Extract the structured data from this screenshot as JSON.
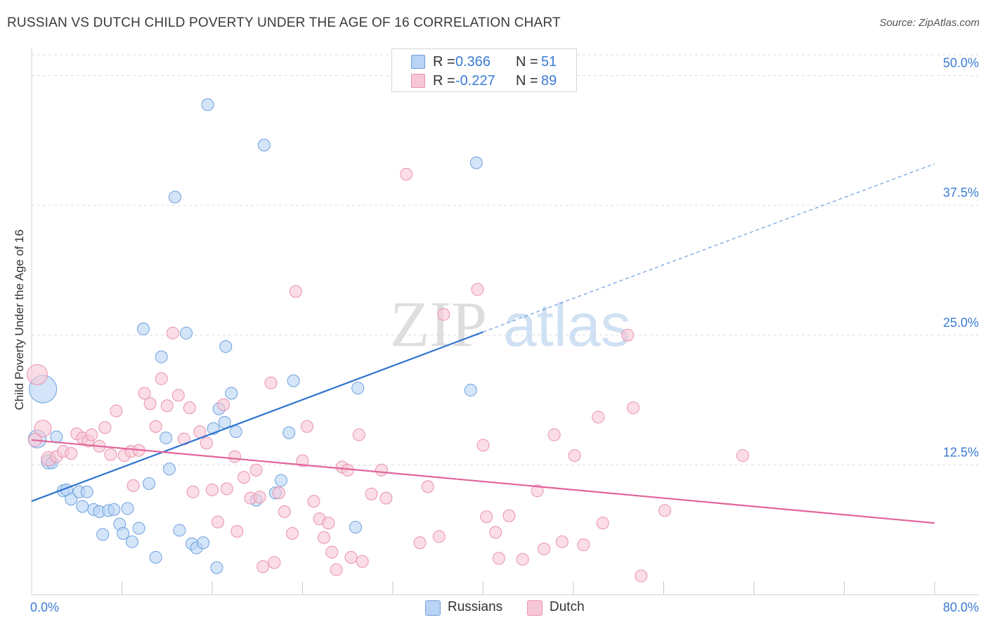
{
  "title": "RUSSIAN VS DUTCH CHILD POVERTY UNDER THE AGE OF 16 CORRELATION CHART",
  "source": "Source: ZipAtlas.com",
  "watermark": {
    "zip": "ZIP",
    "atlas": "atlas"
  },
  "stats": {
    "russians": {
      "r_label": "R =",
      "r_value": "0.366",
      "n_label": "N =",
      "n_value": "51"
    },
    "dutch": {
      "r_label": "R =",
      "r_value": "-0.227",
      "n_label": "N =",
      "n_value": "89"
    }
  },
  "legend": {
    "russians": "Russians",
    "dutch": "Dutch"
  },
  "colors": {
    "russians_fill": "#b8d3f5",
    "russians_stroke": "#6fa0dc",
    "russians_line": "#2f74d0",
    "dutch_fill": "#f8c7d6",
    "dutch_stroke": "#e891b0",
    "dutch_line": "#e2649a",
    "value_text": "#3a7bd5",
    "grid": "#dedede"
  },
  "chart_data": {
    "type": "scatter",
    "title": "RUSSIAN VS DUTCH CHILD POVERTY UNDER THE AGE OF 16 CORRELATION CHART",
    "xlabel": "",
    "ylabel": "Child Poverty Under the Age of 16",
    "xlim": [
      0,
      80
    ],
    "ylim": [
      0,
      52
    ],
    "x_tick_labels": [
      "0.0%",
      "80.0%"
    ],
    "y_ticks": [
      12.5,
      25.0,
      37.5,
      50.0
    ],
    "y_tick_labels": [
      "12.5%",
      "25.0%",
      "37.5%",
      "50.0%"
    ],
    "grid": true,
    "legend_position": "bottom-center",
    "series": [
      {
        "name": "Russians",
        "points": [
          [
            1.0,
            19.8,
            2.3
          ],
          [
            0.5,
            15.0,
            1.5
          ],
          [
            1.5,
            12.8,
            1.2
          ],
          [
            1.8,
            12.7,
            1
          ],
          [
            2.2,
            15.2,
            1
          ],
          [
            2.8,
            10.0,
            1
          ],
          [
            3.1,
            10.1,
            1
          ],
          [
            3.5,
            9.2,
            1
          ],
          [
            4.2,
            9.9,
            1
          ],
          [
            4.9,
            9.9,
            1
          ],
          [
            4.5,
            8.5,
            1
          ],
          [
            5.5,
            8.2,
            1
          ],
          [
            6.0,
            8.0,
            1
          ],
          [
            6.8,
            8.1,
            1
          ],
          [
            7.3,
            8.2,
            1
          ],
          [
            8.5,
            8.3,
            1
          ],
          [
            7.8,
            6.8,
            1
          ],
          [
            6.3,
            5.8,
            1
          ],
          [
            8.1,
            5.9,
            1
          ],
          [
            8.9,
            5.1,
            1
          ],
          [
            9.5,
            6.4,
            1
          ],
          [
            10.4,
            10.7,
            1
          ],
          [
            11.0,
            3.6,
            1
          ],
          [
            11.9,
            15.1,
            1
          ],
          [
            12.2,
            12.1,
            1
          ],
          [
            13.1,
            6.2,
            1
          ],
          [
            14.2,
            4.9,
            1
          ],
          [
            14.6,
            4.5,
            1
          ],
          [
            15.2,
            5.0,
            1
          ],
          [
            16.1,
            16.0,
            1
          ],
          [
            16.4,
            2.6,
            1
          ],
          [
            17.1,
            16.6,
            1
          ],
          [
            18.1,
            15.7,
            1
          ],
          [
            19.9,
            9.1,
            1
          ],
          [
            21.6,
            9.8,
            1
          ],
          [
            22.1,
            11.0,
            1
          ],
          [
            22.8,
            15.6,
            1
          ],
          [
            23.2,
            20.6,
            1
          ],
          [
            28.7,
            6.5,
            1
          ],
          [
            28.9,
            19.9,
            1
          ],
          [
            9.9,
            25.6,
            1
          ],
          [
            11.5,
            22.9,
            1
          ],
          [
            13.7,
            25.2,
            1
          ],
          [
            17.2,
            23.9,
            1
          ],
          [
            16.6,
            17.9,
            1
          ],
          [
            17.7,
            19.4,
            1
          ],
          [
            12.7,
            38.3,
            1
          ],
          [
            15.6,
            47.2,
            1
          ],
          [
            20.6,
            43.3,
            1
          ],
          [
            38.9,
            19.7,
            1
          ],
          [
            39.4,
            41.6,
            1
          ]
        ],
        "trend": {
          "x0": 0,
          "y0": 9.0,
          "x1": 40,
          "y1": 25.3,
          "dashed_to_x": 80,
          "dashed_to_y": 41.5
        }
      },
      {
        "name": "Dutch",
        "points": [
          [
            0.5,
            21.2,
            1.7
          ],
          [
            1.0,
            16.0,
            1.4
          ],
          [
            1.5,
            13.1,
            1.2
          ],
          [
            2.2,
            13.3,
            1
          ],
          [
            2.8,
            13.8,
            1
          ],
          [
            3.5,
            13.6,
            1
          ],
          [
            4.0,
            15.5,
            1
          ],
          [
            4.5,
            15.1,
            1
          ],
          [
            5.0,
            14.8,
            1
          ],
          [
            5.3,
            15.4,
            1
          ],
          [
            6.0,
            14.3,
            1
          ],
          [
            6.5,
            16.1,
            1
          ],
          [
            7.0,
            13.5,
            1
          ],
          [
            7.5,
            17.7,
            1
          ],
          [
            8.2,
            13.4,
            1
          ],
          [
            8.8,
            13.8,
            1
          ],
          [
            9.0,
            10.5,
            1
          ],
          [
            9.5,
            13.9,
            1
          ],
          [
            10.0,
            19.4,
            1
          ],
          [
            10.5,
            18.4,
            1
          ],
          [
            11.0,
            16.2,
            1
          ],
          [
            11.5,
            20.8,
            1
          ],
          [
            12.0,
            18.2,
            1
          ],
          [
            12.5,
            25.2,
            1
          ],
          [
            13.0,
            19.2,
            1
          ],
          [
            13.5,
            15.0,
            1
          ],
          [
            14.0,
            18.0,
            1
          ],
          [
            14.3,
            9.9,
            1
          ],
          [
            14.9,
            15.7,
            1
          ],
          [
            15.5,
            14.6,
            1
          ],
          [
            16.0,
            10.1,
            1
          ],
          [
            16.5,
            7.0,
            1
          ],
          [
            17.0,
            18.3,
            1
          ],
          [
            17.3,
            10.2,
            1
          ],
          [
            18.0,
            13.3,
            1
          ],
          [
            18.2,
            6.1,
            1
          ],
          [
            18.8,
            11.3,
            1
          ],
          [
            19.4,
            9.3,
            1
          ],
          [
            19.9,
            12.0,
            1
          ],
          [
            20.2,
            9.4,
            1
          ],
          [
            20.5,
            2.7,
            1
          ],
          [
            21.2,
            20.4,
            1
          ],
          [
            21.5,
            3.1,
            1
          ],
          [
            21.9,
            9.8,
            1
          ],
          [
            22.4,
            8.0,
            1
          ],
          [
            23.1,
            5.9,
            1
          ],
          [
            23.4,
            29.2,
            1
          ],
          [
            24.0,
            12.9,
            1
          ],
          [
            24.4,
            16.2,
            1
          ],
          [
            25.0,
            9.0,
            1
          ],
          [
            25.5,
            7.3,
            1
          ],
          [
            25.9,
            5.5,
            1
          ],
          [
            26.3,
            6.9,
            1
          ],
          [
            26.6,
            4.1,
            1
          ],
          [
            27.0,
            2.4,
            1
          ],
          [
            27.5,
            12.3,
            1
          ],
          [
            28.0,
            12.0,
            1
          ],
          [
            28.3,
            3.6,
            1
          ],
          [
            29.0,
            15.4,
            1
          ],
          [
            29.3,
            3.2,
            1
          ],
          [
            30.1,
            9.7,
            1
          ],
          [
            31.0,
            12.0,
            1
          ],
          [
            31.4,
            9.3,
            1
          ],
          [
            33.2,
            40.5,
            1
          ],
          [
            34.4,
            5.0,
            1
          ],
          [
            35.1,
            10.4,
            1
          ],
          [
            36.1,
            5.6,
            1
          ],
          [
            36.5,
            27.0,
            1
          ],
          [
            39.5,
            29.4,
            1
          ],
          [
            40.0,
            14.4,
            1
          ],
          [
            40.3,
            7.5,
            1
          ],
          [
            41.1,
            6.0,
            1
          ],
          [
            41.4,
            3.5,
            1
          ],
          [
            42.3,
            7.6,
            1
          ],
          [
            43.5,
            3.4,
            1
          ],
          [
            44.8,
            10.0,
            1
          ],
          [
            45.4,
            4.4,
            1
          ],
          [
            46.3,
            15.4,
            1
          ],
          [
            47.0,
            5.1,
            1
          ],
          [
            48.1,
            13.4,
            1
          ],
          [
            48.9,
            4.8,
            1
          ],
          [
            50.2,
            17.1,
            1
          ],
          [
            50.6,
            6.9,
            1
          ],
          [
            52.8,
            25.0,
            1
          ],
          [
            53.3,
            18.0,
            1
          ],
          [
            54.0,
            1.8,
            1
          ],
          [
            56.1,
            8.1,
            1
          ],
          [
            63.0,
            13.4,
            1
          ],
          [
            0.3,
            14.9,
            1.1
          ]
        ],
        "trend": {
          "x0": 0,
          "y0": 14.9,
          "x1": 80,
          "y1": 6.9
        }
      }
    ]
  }
}
